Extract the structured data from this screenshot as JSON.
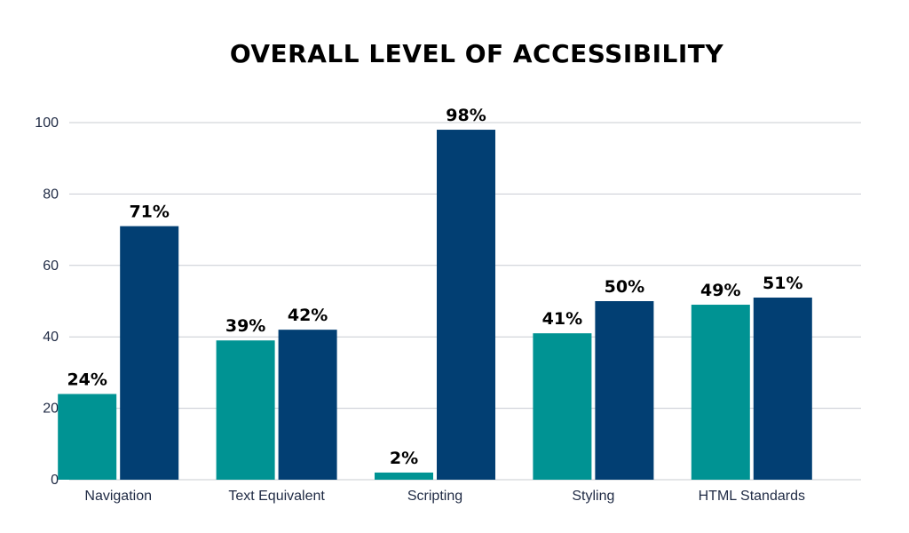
{
  "chart_data": {
    "type": "bar",
    "title": "OVERALL LEVEL OF ACCESSIBILITY",
    "xlabel": "",
    "ylabel": "",
    "ylim": [
      0,
      100
    ],
    "yticks": [
      0,
      20,
      40,
      60,
      80,
      100
    ],
    "grid": true,
    "legend": "none",
    "categories": [
      "Navigation",
      "Text Equivalent",
      "Scripting",
      "Styling",
      "HTML Standards"
    ],
    "series": [
      {
        "name": "Series 1",
        "color": "#009393",
        "values": [
          24,
          39,
          2,
          41,
          49
        ],
        "labels": [
          "24%",
          "39%",
          "2%",
          "41%",
          "49%"
        ]
      },
      {
        "name": "Series 2",
        "color": "#023f73",
        "values": [
          71,
          42,
          98,
          50,
          51
        ],
        "labels": [
          "71%",
          "42%",
          "98%",
          "50%",
          "51%"
        ]
      }
    ]
  }
}
